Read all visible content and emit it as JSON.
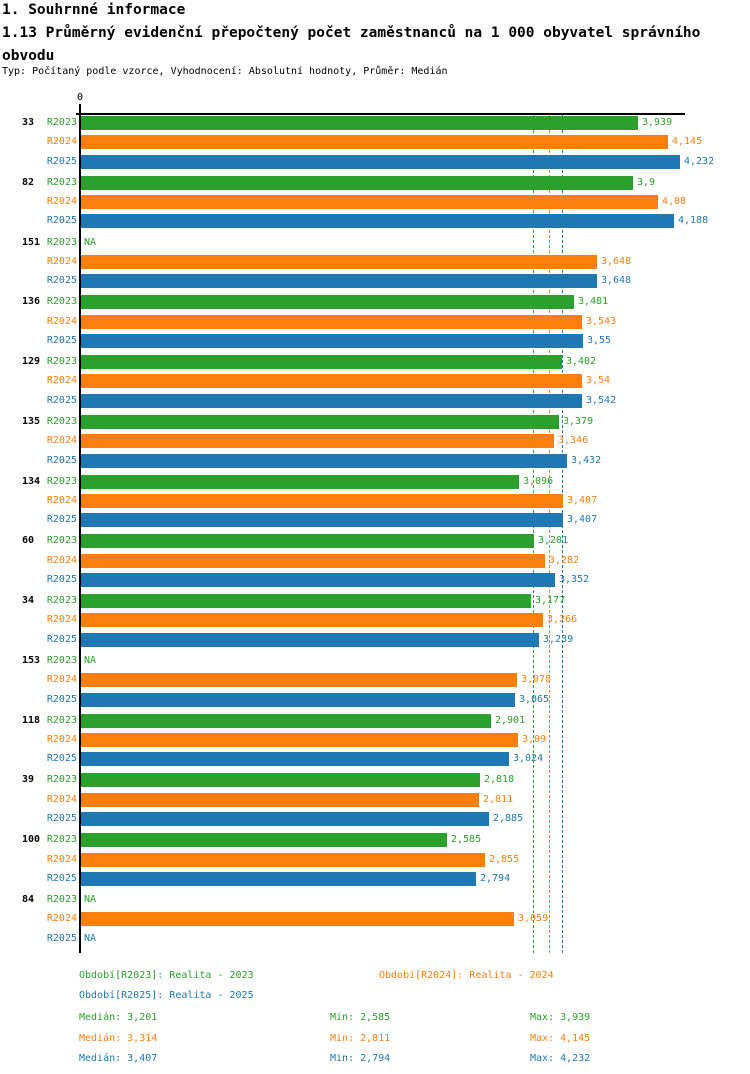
{
  "header": {
    "title": "1. Souhrnné informace",
    "subtitle": "1.13 Průměrný evidenční přepočtený počet zaměstnanců na 1 000 obyvatel správního obvodu",
    "meta": "Typ: Počítaný podle vzorce, Vyhodnocení: Absolutní hodnoty, Průměr: Medián"
  },
  "colors": {
    "series": [
      "#2CA02C",
      "#FF7F0E",
      "#1F77B4"
    ],
    "axis": "#000000",
    "background": "#FFFFFF"
  },
  "chart_data": {
    "type": "bar",
    "orientation": "horizontal",
    "zero_label": "0",
    "xlim": [
      0,
      4.27
    ],
    "grid": false,
    "series_names": [
      "R2023",
      "R2024",
      "R2025"
    ],
    "na_text": "NA",
    "groups": [
      {
        "id": "33",
        "rows": [
          {
            "series": "R2023",
            "value": 3.939,
            "label": "3,939"
          },
          {
            "series": "R2024",
            "value": 4.145,
            "label": "4,145"
          },
          {
            "series": "R2025",
            "value": 4.232,
            "label": "4,232"
          }
        ]
      },
      {
        "id": "82",
        "rows": [
          {
            "series": "R2023",
            "value": 3.9,
            "label": "3,9"
          },
          {
            "series": "R2024",
            "value": 4.08,
            "label": "4,08"
          },
          {
            "series": "R2025",
            "value": 4.188,
            "label": "4,188"
          }
        ]
      },
      {
        "id": "151",
        "rows": [
          {
            "series": "R2023",
            "value": null,
            "label": "NA"
          },
          {
            "series": "R2024",
            "value": 3.648,
            "label": "3,648"
          },
          {
            "series": "R2025",
            "value": 3.648,
            "label": "3,648"
          }
        ]
      },
      {
        "id": "136",
        "rows": [
          {
            "series": "R2023",
            "value": 3.481,
            "label": "3,481"
          },
          {
            "series": "R2024",
            "value": 3.543,
            "label": "3,543"
          },
          {
            "series": "R2025",
            "value": 3.55,
            "label": "3,55"
          }
        ]
      },
      {
        "id": "129",
        "rows": [
          {
            "series": "R2023",
            "value": 3.402,
            "label": "3,402"
          },
          {
            "series": "R2024",
            "value": 3.54,
            "label": "3,54"
          },
          {
            "series": "R2025",
            "value": 3.542,
            "label": "3,542"
          }
        ]
      },
      {
        "id": "135",
        "rows": [
          {
            "series": "R2023",
            "value": 3.379,
            "label": "3,379"
          },
          {
            "series": "R2024",
            "value": 3.346,
            "label": "3,346"
          },
          {
            "series": "R2025",
            "value": 3.432,
            "label": "3,432"
          }
        ]
      },
      {
        "id": "134",
        "rows": [
          {
            "series": "R2023",
            "value": 3.096,
            "label": "3,096"
          },
          {
            "series": "R2024",
            "value": 3.407,
            "label": "3,407"
          },
          {
            "series": "R2025",
            "value": 3.407,
            "label": "3,407"
          }
        ]
      },
      {
        "id": "60",
        "rows": [
          {
            "series": "R2023",
            "value": 3.201,
            "label": "3,201"
          },
          {
            "series": "R2024",
            "value": 3.282,
            "label": "3,282"
          },
          {
            "series": "R2025",
            "value": 3.352,
            "label": "3,352"
          }
        ]
      },
      {
        "id": "34",
        "rows": [
          {
            "series": "R2023",
            "value": 3.177,
            "label": "3,177"
          },
          {
            "series": "R2024",
            "value": 3.266,
            "label": "3,266"
          },
          {
            "series": "R2025",
            "value": 3.239,
            "label": "3,239"
          }
        ]
      },
      {
        "id": "153",
        "rows": [
          {
            "series": "R2023",
            "value": null,
            "label": "NA"
          },
          {
            "series": "R2024",
            "value": 3.078,
            "label": "3,078"
          },
          {
            "series": "R2025",
            "value": 3.065,
            "label": "3,065"
          }
        ]
      },
      {
        "id": "118",
        "rows": [
          {
            "series": "R2023",
            "value": 2.901,
            "label": "2,901"
          },
          {
            "series": "R2024",
            "value": 3.09,
            "label": "3,09"
          },
          {
            "series": "R2025",
            "value": 3.024,
            "label": "3,024"
          }
        ]
      },
      {
        "id": "39",
        "rows": [
          {
            "series": "R2023",
            "value": 2.818,
            "label": "2,818"
          },
          {
            "series": "R2024",
            "value": 2.811,
            "label": "2,811"
          },
          {
            "series": "R2025",
            "value": 2.885,
            "label": "2,885"
          }
        ]
      },
      {
        "id": "100",
        "rows": [
          {
            "series": "R2023",
            "value": 2.585,
            "label": "2,585"
          },
          {
            "series": "R2024",
            "value": 2.855,
            "label": "2,855"
          },
          {
            "series": "R2025",
            "value": 2.794,
            "label": "2,794"
          }
        ]
      },
      {
        "id": "84",
        "rows": [
          {
            "series": "R2023",
            "value": null,
            "label": "NA"
          },
          {
            "series": "R2024",
            "value": 3.059,
            "label": "3,059"
          },
          {
            "series": "R2025",
            "value": null,
            "label": "NA"
          }
        ]
      }
    ],
    "medians": [
      {
        "series": "R2023",
        "value": 3.201
      },
      {
        "series": "R2024",
        "value": 3.314
      },
      {
        "series": "R2025",
        "value": 3.407
      }
    ]
  },
  "legend": {
    "items": [
      {
        "label": "Období[R2023]: Realita - 2023",
        "series": 0
      },
      {
        "label": "Období[R2024]: Realita - 2024",
        "series": 1
      },
      {
        "label": "Období[R2025]: Realita - 2025",
        "series": 2
      }
    ]
  },
  "stats": {
    "rows": [
      {
        "series": 0,
        "median": "Medián: 3,201",
        "min": "Min: 2,585",
        "max": "Max: 3,939"
      },
      {
        "series": 1,
        "median": "Medián: 3,314",
        "min": "Min: 2,811",
        "max": "Max: 4,145"
      },
      {
        "series": 2,
        "median": "Medián: 3,407",
        "min": "Min: 2,794",
        "max": "Max: 4,232"
      }
    ]
  }
}
